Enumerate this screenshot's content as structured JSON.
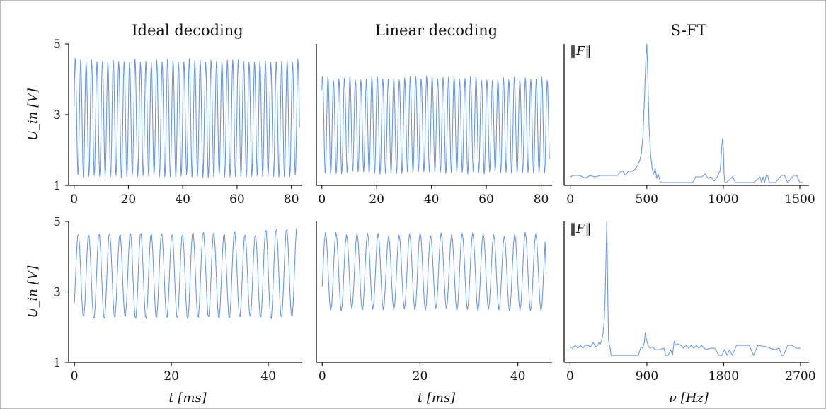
{
  "colors": {
    "line": "#6495ed",
    "axis": "#111111",
    "frame": "#bbbbbb"
  },
  "chart_data": [
    {
      "type": "line",
      "title": "Ideal decoding",
      "ylabel": "U_in [V]",
      "xlabel": "",
      "xlim": [
        -2,
        84
      ],
      "ylim": [
        1,
        5
      ],
      "xticks": [
        0,
        20,
        40,
        60,
        80
      ],
      "yticks": [
        1,
        3,
        5
      ],
      "signal": {
        "kind": "sine",
        "t_start": 0,
        "t_end": 83,
        "period_ms": 2.0,
        "low": 1.2,
        "high": 4.6,
        "start": 3.2
      }
    },
    {
      "type": "line",
      "title": "Linear decoding",
      "ylabel": "",
      "xlabel": "",
      "xlim": [
        -2,
        84
      ],
      "ylim": [
        1,
        5
      ],
      "xticks": [
        0,
        20,
        40,
        60,
        80
      ],
      "yticks": [],
      "signal": {
        "kind": "sine",
        "t_start": 0,
        "t_end": 83,
        "period_ms": 2.0,
        "low": 1.3,
        "high": 4.1,
        "start": 3.7
      }
    },
    {
      "type": "line",
      "title": "S-FT",
      "ylabel": "‖F‖",
      "xlabel": "",
      "xlim": [
        -40,
        1560
      ],
      "ylim": [
        0,
        1
      ],
      "xticks": [
        0,
        500,
        1000,
        1500
      ],
      "yticks": [],
      "x": [
        0,
        20,
        60,
        100,
        130,
        160,
        200,
        240,
        280,
        310,
        330,
        345,
        360,
        380,
        400,
        420,
        440,
        455,
        465,
        475,
        485,
        495,
        500,
        505,
        515,
        525,
        535,
        545,
        555,
        565,
        575,
        590,
        700,
        800,
        820,
        860,
        880,
        900,
        920,
        940,
        960,
        980,
        990,
        995,
        1000,
        1005,
        1010,
        1020,
        1060,
        1080,
        1100,
        1200,
        1240,
        1250,
        1260,
        1270,
        1280,
        1290,
        1300,
        1340,
        1380,
        1400,
        1420,
        1460,
        1480,
        1500,
        1520
      ],
      "y": [
        0.06,
        0.07,
        0.07,
        0.05,
        0.07,
        0.06,
        0.07,
        0.07,
        0.07,
        0.07,
        0.1,
        0.1,
        0.07,
        0.1,
        0.1,
        0.11,
        0.14,
        0.18,
        0.23,
        0.35,
        0.62,
        0.92,
        1.0,
        0.84,
        0.42,
        0.22,
        0.12,
        0.08,
        0.12,
        0.05,
        0.08,
        0.02,
        0.02,
        0.02,
        0.06,
        0.06,
        0.08,
        0.05,
        0.06,
        0.03,
        0.06,
        0.11,
        0.27,
        0.33,
        0.26,
        0.08,
        0.02,
        0.02,
        0.06,
        0.02,
        0.02,
        0.02,
        0.06,
        0.02,
        0.06,
        0.02,
        0.07,
        0.07,
        0.02,
        0.02,
        0.07,
        0.07,
        0.02,
        0.07,
        0.07,
        0.02,
        0.02
      ]
    },
    {
      "type": "line",
      "title": "",
      "ylabel": "U_in [V]",
      "xlabel": "t [ms]",
      "xlim": [
        -1.2,
        47
      ],
      "ylim": [
        1,
        5
      ],
      "xticks": [
        0,
        20,
        40
      ],
      "yticks": [
        1,
        3,
        5
      ],
      "signal": {
        "kind": "sine",
        "t_start": 0,
        "t_end": 46,
        "period_ms": 2.15,
        "low": 2.2,
        "high": 4.75,
        "start": 2.65,
        "high_late": 4.9
      }
    },
    {
      "type": "line",
      "title": "",
      "ylabel": "",
      "xlabel": "t [ms]",
      "xlim": [
        -1.2,
        47
      ],
      "ylim": [
        1,
        5
      ],
      "xticks": [
        0,
        20,
        40
      ],
      "yticks": [],
      "signal": {
        "kind": "sine",
        "t_start": 0,
        "t_end": 46,
        "period_ms": 2.15,
        "low": 2.45,
        "high": 4.7,
        "start": 3.15,
        "end": 3.5
      }
    },
    {
      "type": "line",
      "title": "",
      "ylabel": "‖F‖",
      "xlabel": "ν [Hz]",
      "xlim": [
        -70,
        2800
      ],
      "ylim": [
        0,
        1
      ],
      "xticks": [
        0,
        900,
        1800,
        2700
      ],
      "yticks": [],
      "x": [
        0,
        30,
        60,
        90,
        120,
        150,
        180,
        210,
        240,
        270,
        300,
        320,
        340,
        355,
        370,
        385,
        400,
        410,
        420,
        430,
        440,
        450,
        460,
        470,
        480,
        500,
        600,
        700,
        800,
        830,
        850,
        870,
        880,
        900,
        920,
        940,
        960,
        1000,
        1050,
        1100,
        1120,
        1150,
        1180,
        1200,
        1220,
        1240,
        1260,
        1300,
        1330,
        1360,
        1390,
        1420,
        1450,
        1480,
        1510,
        1540,
        1570,
        1600,
        1640,
        1700,
        1740,
        1780,
        1810,
        1840,
        1870,
        1900,
        1950,
        2000,
        2100,
        2150,
        2200,
        2300,
        2400,
        2450,
        2480,
        2500,
        2550,
        2600,
        2650,
        2700
      ],
      "y": [
        0.11,
        0.1,
        0.12,
        0.1,
        0.12,
        0.1,
        0.12,
        0.12,
        0.11,
        0.14,
        0.11,
        0.12,
        0.14,
        0.13,
        0.16,
        0.2,
        0.3,
        0.45,
        0.72,
        1.0,
        0.55,
        0.16,
        0.12,
        0.1,
        0.05,
        0.05,
        0.05,
        0.05,
        0.05,
        0.11,
        0.1,
        0.14,
        0.21,
        0.15,
        0.11,
        0.1,
        0.11,
        0.09,
        0.09,
        0.1,
        0.05,
        0.05,
        0.09,
        0.05,
        0.15,
        0.12,
        0.13,
        0.12,
        0.1,
        0.12,
        0.1,
        0.12,
        0.1,
        0.12,
        0.1,
        0.12,
        0.1,
        0.09,
        0.1,
        0.1,
        0.05,
        0.05,
        0.09,
        0.05,
        0.09,
        0.05,
        0.12,
        0.12,
        0.12,
        0.05,
        0.12,
        0.11,
        0.09,
        0.1,
        0.05,
        0.05,
        0.12,
        0.12,
        0.1,
        0.1
      ]
    }
  ]
}
